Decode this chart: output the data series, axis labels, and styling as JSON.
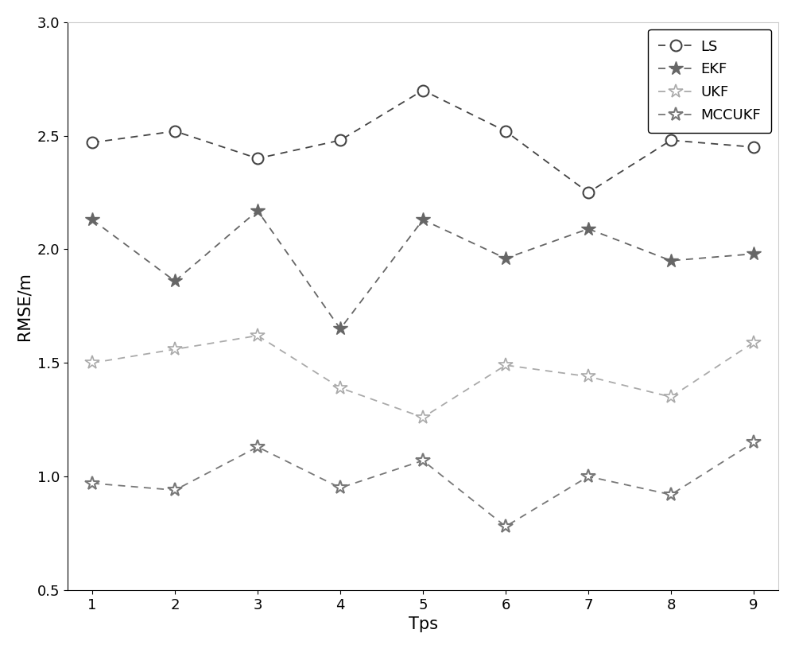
{
  "x": [
    1,
    2,
    3,
    4,
    5,
    6,
    7,
    8,
    9
  ],
  "LS": [
    2.47,
    2.52,
    2.4,
    2.48,
    2.7,
    2.52,
    2.25,
    2.48,
    2.45
  ],
  "EKF": [
    2.13,
    1.86,
    2.17,
    1.65,
    2.13,
    1.96,
    2.09,
    1.95,
    1.98
  ],
  "UKF": [
    1.5,
    1.56,
    1.62,
    1.39,
    1.26,
    1.49,
    1.44,
    1.35,
    1.59
  ],
  "MCCUKF": [
    0.97,
    0.94,
    1.13,
    0.95,
    1.07,
    0.78,
    1.0,
    0.92,
    1.15
  ],
  "color_LS": "#444444",
  "color_EKF": "#666666",
  "color_UKF": "#aaaaaa",
  "color_MCCUKF": "#777777",
  "xlabel": "Tps",
  "ylabel": "RMSE/m",
  "ylim": [
    0.5,
    3.0
  ],
  "xlim": [
    0.7,
    9.3
  ],
  "yticks": [
    0.5,
    1.0,
    1.5,
    2.0,
    2.5,
    3.0
  ],
  "xticks": [
    1,
    2,
    3,
    4,
    5,
    6,
    7,
    8,
    9
  ],
  "legend_labels": [
    "LS",
    "EKF",
    "UKF",
    "MCCUKF"
  ],
  "figsize": [
    10.0,
    8.16
  ],
  "dpi": 100
}
